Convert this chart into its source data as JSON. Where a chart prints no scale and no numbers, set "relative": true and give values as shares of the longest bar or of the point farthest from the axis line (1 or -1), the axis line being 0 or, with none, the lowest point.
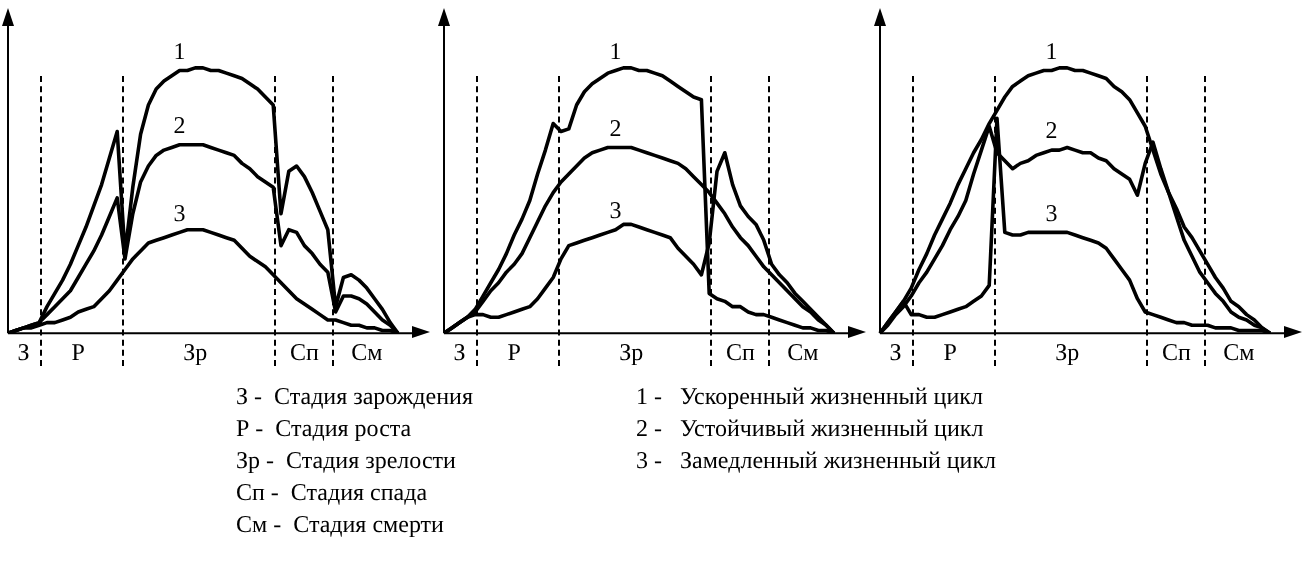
{
  "chart_data": [
    {
      "type": "line",
      "relative": true,
      "categories": [
        null,
        null,
        "З",
        null,
        null,
        null,
        null,
        null,
        null,
        "Р",
        null,
        null,
        null,
        null,
        null,
        null,
        null,
        null,
        null,
        null,
        null,
        null,
        null,
        null,
        "Зр",
        null,
        null,
        null,
        null,
        null,
        null,
        null,
        null,
        null,
        null,
        null,
        null,
        null,
        "Сп",
        null,
        null,
        null,
        null,
        null,
        null,
        null,
        "См",
        null,
        null,
        null,
        null
      ],
      "grid": false,
      "legend": false,
      "marker": "none",
      "line_style": "solid",
      "annotations": [
        "З -  Стадия зарождения",
        "Р -  Стадия роста",
        "Зр -  Стадия зрелости",
        "Сп -  Стадия спада",
        "См -  Стадия смерти",
        "1 -   Ускоренный жизненный цикл",
        "2 -   Устойчивый жизненный цикл",
        "3 -   Замедленный жизненный цикл"
      ],
      "series": [
        {
          "name": "1",
          "color": "#000000",
          "values": [
            0,
            0.01,
            0.02,
            0.03,
            0.04,
            0.1,
            0.15,
            0.2,
            0.26,
            0.33,
            0.4,
            0.48,
            0.56,
            0.66,
            0.76,
            0.3,
            0.55,
            0.75,
            0.86,
            0.92,
            0.95,
            0.97,
            0.99,
            0.99,
            1,
            1,
            0.99,
            0.99,
            0.98,
            0.97,
            0.96,
            0.94,
            0.92,
            0.89,
            0.86,
            0.45,
            0.61,
            0.63,
            0.59,
            0.53,
            0.46,
            0.39,
            0.1,
            0.21,
            0.22,
            0.2,
            0.17,
            0.13,
            0.09,
            0.04,
            0
          ]
        },
        {
          "name": "2",
          "color": "#000000",
          "values": [
            0,
            0.01,
            0.02,
            0.03,
            0.04,
            0.07,
            0.1,
            0.13,
            0.16,
            0.21,
            0.26,
            0.31,
            0.37,
            0.44,
            0.51,
            0.28,
            0.45,
            0.57,
            0.63,
            0.67,
            0.69,
            0.7,
            0.71,
            0.71,
            0.71,
            0.71,
            0.7,
            0.69,
            0.68,
            0.67,
            0.64,
            0.62,
            0.59,
            0.57,
            0.55,
            0.33,
            0.39,
            0.38,
            0.33,
            0.3,
            0.26,
            0.23,
            0.08,
            0.14,
            0.14,
            0.13,
            0.11,
            0.08,
            0.05,
            0.03,
            0
          ]
        },
        {
          "name": "3",
          "color": "#000000",
          "values": [
            0,
            0.01,
            0.02,
            0.02,
            0.03,
            0.04,
            0.04,
            0.05,
            0.06,
            0.08,
            0.09,
            0.1,
            0.13,
            0.16,
            0.2,
            0.24,
            0.28,
            0.31,
            0.34,
            0.35,
            0.36,
            0.37,
            0.38,
            0.39,
            0.39,
            0.39,
            0.38,
            0.37,
            0.36,
            0.35,
            0.32,
            0.29,
            0.27,
            0.25,
            0.22,
            0.19,
            0.16,
            0.13,
            0.11,
            0.09,
            0.07,
            0.05,
            0.05,
            0.04,
            0.03,
            0.03,
            0.02,
            0.02,
            0.01,
            0.01,
            0
          ]
        }
      ]
    },
    {
      "type": "line",
      "relative": true,
      "categories": [
        null,
        null,
        "З",
        null,
        null,
        null,
        null,
        null,
        null,
        "Р",
        null,
        null,
        null,
        null,
        null,
        null,
        null,
        null,
        null,
        null,
        null,
        null,
        null,
        null,
        "Зр",
        null,
        null,
        null,
        null,
        null,
        null,
        null,
        null,
        null,
        null,
        null,
        null,
        null,
        "Сп",
        null,
        null,
        null,
        null,
        null,
        null,
        null,
        "См",
        null,
        null,
        null,
        null
      ],
      "grid": false,
      "legend": false,
      "marker": "none",
      "line_style": "solid",
      "series": [
        {
          "name": "1",
          "color": "#000000",
          "values": [
            0,
            0.02,
            0.04,
            0.06,
            0.09,
            0.14,
            0.19,
            0.24,
            0.3,
            0.37,
            0.43,
            0.5,
            0.6,
            0.69,
            0.79,
            0.76,
            0.77,
            0.86,
            0.91,
            0.94,
            0.96,
            0.98,
            0.99,
            1,
            1,
            0.99,
            0.99,
            0.98,
            0.97,
            0.95,
            0.93,
            0.91,
            0.89,
            0.88,
            0.15,
            0.13,
            0.12,
            0.1,
            0.1,
            0.08,
            0.07,
            0.07,
            0.06,
            0.05,
            0.04,
            0.03,
            0.02,
            0.02,
            0.01,
            0.01,
            0
          ]
        },
        {
          "name": "2",
          "color": "#000000",
          "values": [
            0,
            0.02,
            0.04,
            0.06,
            0.08,
            0.12,
            0.16,
            0.19,
            0.23,
            0.26,
            0.3,
            0.36,
            0.42,
            0.48,
            0.53,
            0.57,
            0.6,
            0.63,
            0.66,
            0.68,
            0.69,
            0.7,
            0.7,
            0.7,
            0.7,
            0.69,
            0.68,
            0.67,
            0.66,
            0.65,
            0.64,
            0.62,
            0.59,
            0.56,
            0.53,
            0.49,
            0.45,
            0.4,
            0.36,
            0.33,
            0.29,
            0.25,
            0.22,
            0.19,
            0.16,
            0.13,
            0.1,
            0.08,
            0.05,
            0.03,
            0
          ]
        },
        {
          "name": "3",
          "color": "#000000",
          "values": [
            0,
            0.02,
            0.04,
            0.06,
            0.07,
            0.07,
            0.06,
            0.06,
            0.07,
            0.08,
            0.09,
            0.1,
            0.13,
            0.17,
            0.21,
            0.28,
            0.33,
            0.34,
            0.35,
            0.36,
            0.37,
            0.38,
            0.39,
            0.41,
            0.41,
            0.4,
            0.39,
            0.38,
            0.37,
            0.36,
            0.32,
            0.29,
            0.26,
            0.22,
            0.34,
            0.61,
            0.68,
            0.56,
            0.48,
            0.44,
            0.41,
            0.35,
            0.26,
            0.22,
            0.19,
            0.15,
            0.12,
            0.09,
            0.06,
            0.03,
            0
          ]
        }
      ]
    },
    {
      "type": "line",
      "relative": true,
      "categories": [
        null,
        null,
        "З",
        null,
        null,
        null,
        null,
        null,
        null,
        "Р",
        null,
        null,
        null,
        null,
        null,
        null,
        null,
        null,
        null,
        null,
        null,
        null,
        null,
        null,
        "Зр",
        null,
        null,
        null,
        null,
        null,
        null,
        null,
        null,
        null,
        null,
        null,
        null,
        null,
        "Сп",
        null,
        null,
        null,
        null,
        null,
        null,
        null,
        "См",
        null,
        null,
        null,
        null
      ],
      "grid": false,
      "legend": false,
      "marker": "none",
      "line_style": "solid",
      "series": [
        {
          "name": "1",
          "color": "#000000",
          "values": [
            0,
            0.04,
            0.08,
            0.12,
            0.17,
            0.24,
            0.3,
            0.37,
            0.43,
            0.49,
            0.56,
            0.62,
            0.68,
            0.73,
            0.79,
            0.84,
            0.89,
            0.93,
            0.95,
            0.97,
            0.98,
            0.99,
            0.99,
            1,
            1,
            0.99,
            0.99,
            0.98,
            0.97,
            0.96,
            0.93,
            0.91,
            0.88,
            0.83,
            0.78,
            0.69,
            0.6,
            0.53,
            0.47,
            0.4,
            0.36,
            0.31,
            0.26,
            0.21,
            0.17,
            0.12,
            0.1,
            0.07,
            0.05,
            0.02,
            0
          ]
        },
        {
          "name": "2",
          "color": "#000000",
          "values": [
            0,
            0.03,
            0.07,
            0.1,
            0.14,
            0.19,
            0.23,
            0.28,
            0.33,
            0.39,
            0.44,
            0.5,
            0.6,
            0.69,
            0.78,
            0.68,
            0.65,
            0.62,
            0.64,
            0.65,
            0.67,
            0.68,
            0.69,
            0.69,
            0.7,
            0.69,
            0.68,
            0.68,
            0.66,
            0.65,
            0.62,
            0.6,
            0.58,
            0.52,
            0.64,
            0.72,
            0.62,
            0.53,
            0.44,
            0.35,
            0.29,
            0.23,
            0.19,
            0.15,
            0.12,
            0.08,
            0.06,
            0.05,
            0.03,
            0.02,
            0
          ]
        },
        {
          "name": "3",
          "color": "#000000",
          "values": [
            0,
            0.04,
            0.08,
            0.12,
            0.07,
            0.07,
            0.06,
            0.06,
            0.07,
            0.08,
            0.09,
            0.1,
            0.12,
            0.14,
            0.18,
            0.81,
            0.38,
            0.37,
            0.37,
            0.38,
            0.38,
            0.38,
            0.38,
            0.38,
            0.38,
            0.37,
            0.36,
            0.35,
            0.34,
            0.32,
            0.28,
            0.24,
            0.2,
            0.13,
            0.08,
            0.07,
            0.06,
            0.05,
            0.04,
            0.04,
            0.03,
            0.03,
            0.03,
            0.02,
            0.02,
            0.02,
            0.01,
            0.01,
            0.01,
            0.01,
            0
          ]
        }
      ]
    }
  ]
}
